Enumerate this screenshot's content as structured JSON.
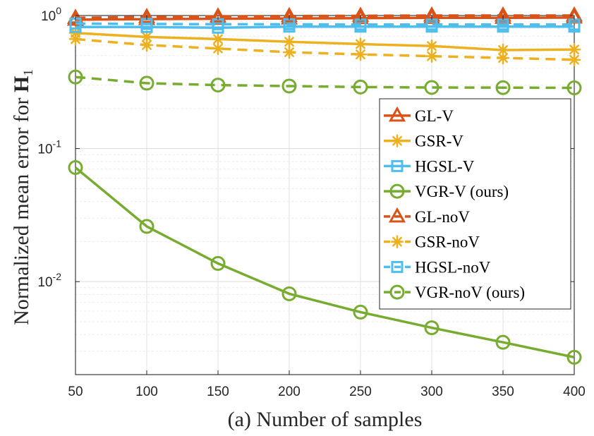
{
  "chart_data": {
    "type": "line",
    "title": "",
    "xlabel": "(a) Number of samples",
    "ylabel": {
      "prefix": "Normalized mean error for ",
      "symbol": "H",
      "subscript": "1"
    },
    "yscale": "log",
    "xlim": [
      50,
      400
    ],
    "ylim": [
      0.002,
      1
    ],
    "grid": true,
    "x_ticks": [
      50,
      100,
      150,
      200,
      250,
      300,
      350,
      400
    ],
    "x_tick_labels": [
      "50",
      "100",
      "150",
      "200",
      "250",
      "300",
      "350",
      "400"
    ],
    "y_ticks": [
      {
        "value": 1,
        "base": "10",
        "exp": "0"
      },
      {
        "value": 0.1,
        "base": "10",
        "exp": "-1"
      },
      {
        "value": 0.01,
        "base": "10",
        "exp": "-2"
      }
    ],
    "legend_position": "right",
    "x": [
      50,
      100,
      150,
      200,
      250,
      300,
      350,
      400
    ],
    "series": [
      {
        "name": "GL-V",
        "color": "#D95319",
        "marker": "triangle",
        "dash": "solid",
        "values": [
          0.93,
          0.94,
          0.945,
          0.95,
          0.955,
          0.96,
          0.96,
          0.965
        ]
      },
      {
        "name": "GSR-V",
        "color": "#EDB120",
        "marker": "asterisk",
        "dash": "solid",
        "values": [
          0.74,
          0.69,
          0.665,
          0.635,
          0.61,
          0.59,
          0.55,
          0.555
        ]
      },
      {
        "name": "HGSL-V",
        "color": "#4DBEEE",
        "marker": "square",
        "dash": "solid",
        "values": [
          0.82,
          0.82,
          0.81,
          0.825,
          0.825,
          0.825,
          0.825,
          0.825
        ]
      },
      {
        "name": "VGR-V (ours)",
        "color": "#77AC30",
        "marker": "circle",
        "dash": "solid",
        "values": [
          0.072,
          0.026,
          0.0137,
          0.0081,
          0.0059,
          0.0045,
          0.0035,
          0.0027
        ]
      },
      {
        "name": "GL-noV",
        "color": "#D95319",
        "marker": "triangle",
        "dash": "dashed",
        "values": [
          0.96,
          0.975,
          0.985,
          0.99,
          0.995,
          1.0,
          1.0,
          1.0
        ]
      },
      {
        "name": "GSR-noV",
        "color": "#EDB120",
        "marker": "asterisk",
        "dash": "dashed",
        "values": [
          0.665,
          0.6,
          0.565,
          0.53,
          0.51,
          0.495,
          0.48,
          0.465
        ]
      },
      {
        "name": "HGSL-noV",
        "color": "#4DBEEE",
        "marker": "square",
        "dash": "dashed",
        "values": [
          0.87,
          0.865,
          0.86,
          0.86,
          0.855,
          0.855,
          0.855,
          0.855
        ]
      },
      {
        "name": "VGR-noV (ours)",
        "color": "#77AC30",
        "marker": "circle",
        "dash": "dashed",
        "values": [
          0.345,
          0.31,
          0.3,
          0.295,
          0.29,
          0.288,
          0.287,
          0.286
        ]
      }
    ]
  }
}
